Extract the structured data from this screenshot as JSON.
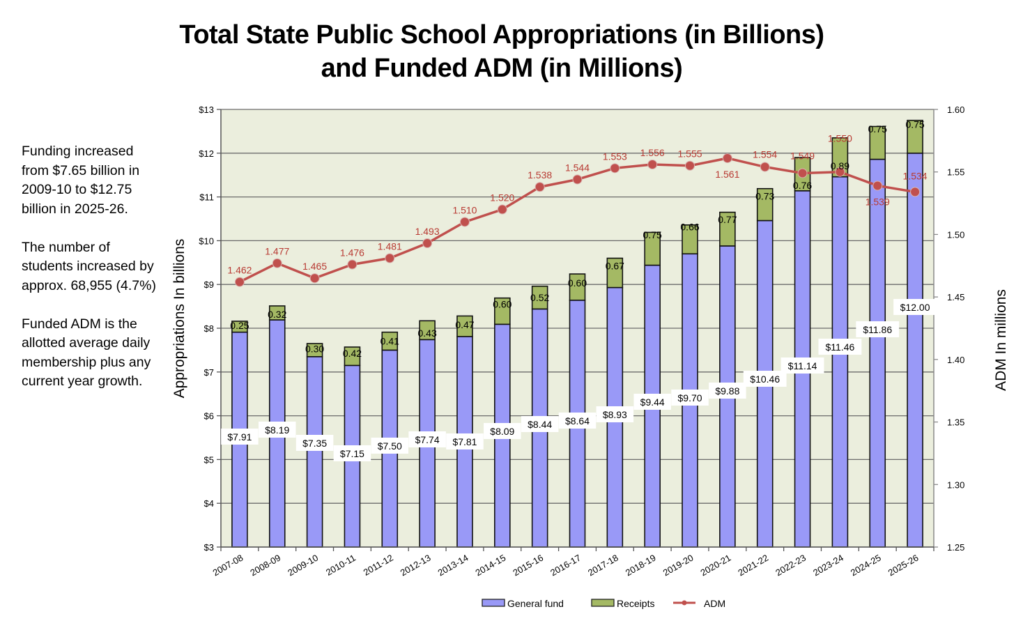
{
  "title_line1": "Total State Public School Appropriations (in Billions)",
  "title_line2": "and Funded ADM (in Millions)",
  "side_note": {
    "paragraphs": [
      "Funding increased from $7.65 billion in 2009-10 to $12.75 billion in 2025-26.",
      "The number of students increased by approx. 68,955 (4.7%)",
      "Funded ADM is the allotted average daily membership plus any current year growth."
    ]
  },
  "chart_data": {
    "type": "bar",
    "subtype": "stacked-bar-with-line-secondary-axis",
    "title": "Total State Public School Appropriations (in Billions) and Funded ADM (in Millions)",
    "categories": [
      "2007-08",
      "2008-09",
      "2009-10",
      "2010-11",
      "2011-12",
      "2012-13",
      "2013-14",
      "2014-15",
      "2015-16",
      "2016-17",
      "2017-18",
      "2018-19",
      "2019-20",
      "2020-21",
      "2021-22",
      "2022-23",
      "2023-24",
      "2024-25",
      "2025-26"
    ],
    "series": [
      {
        "name": "General fund",
        "type": "bar",
        "axis": "left",
        "color": "#9999f7",
        "values": [
          7.91,
          8.19,
          7.35,
          7.15,
          7.5,
          7.74,
          7.81,
          8.09,
          8.44,
          8.64,
          8.93,
          9.44,
          9.7,
          9.88,
          10.46,
          11.14,
          11.46,
          11.86,
          12.0
        ],
        "labels": [
          "$7.91",
          "$8.19",
          "$7.35",
          "$7.15",
          "$7.50",
          "$7.74",
          "$7.81",
          "$8.09",
          "$8.44",
          "$8.64",
          "$8.93",
          "$9.44",
          "$9.70",
          "$9.88",
          "$10.46",
          "$11.14",
          "$11.46",
          "$11.86",
          "$12.00"
        ]
      },
      {
        "name": "Receipts",
        "type": "bar",
        "axis": "left",
        "color": "#a4b964",
        "values": [
          0.25,
          0.32,
          0.3,
          0.42,
          0.41,
          0.43,
          0.47,
          0.6,
          0.52,
          0.6,
          0.67,
          0.75,
          0.66,
          0.77,
          0.73,
          0.76,
          0.89,
          0.75,
          0.75
        ],
        "labels": [
          "0.25",
          "0.32",
          "0.30",
          "0.42",
          "0.41",
          "0.43",
          "0.47",
          "0.60",
          "0.52",
          "0.60",
          "0.67",
          "0.75",
          "0.66",
          "0.77",
          "0.73",
          "0.76",
          "0.89",
          "0.75",
          "0.75"
        ]
      },
      {
        "name": "ADM",
        "type": "line",
        "axis": "right",
        "color": "#c0504d",
        "values": [
          1.462,
          1.477,
          1.465,
          1.476,
          1.481,
          1.493,
          1.51,
          1.52,
          1.538,
          1.544,
          1.553,
          1.556,
          1.555,
          1.561,
          1.554,
          1.549,
          1.55,
          1.539,
          1.534
        ],
        "labels": [
          "1.462",
          "1.477",
          "1.465",
          "1.476",
          "1.481",
          "1.493",
          "1.510",
          "1.520",
          "1.538",
          "1.544",
          "1.553",
          "1.556",
          "1.555",
          "1.561",
          "1.554",
          "1.549",
          "1.550",
          "1.539",
          "1.534"
        ]
      }
    ],
    "ylabel": "Appropriations In  billions",
    "ylabel_right": "ADM In  millions",
    "xlabel": "",
    "ylim": [
      3,
      13
    ],
    "ylim_right": [
      1.25,
      1.6
    ],
    "yticks": [
      "$3",
      "$4",
      "$5",
      "$6",
      "$7",
      "$8",
      "$9",
      "$10",
      "$11",
      "$12",
      "$13"
    ],
    "yticks_right": [
      "1.25",
      "1.30",
      "1.35",
      "1.40",
      "1.45",
      "1.50",
      "1.55",
      "1.60"
    ],
    "grid": true,
    "plot_background": "#ebeedd",
    "legend": {
      "position": "bottom-center",
      "entries": [
        "General fund",
        "Receipts",
        "ADM"
      ]
    }
  }
}
